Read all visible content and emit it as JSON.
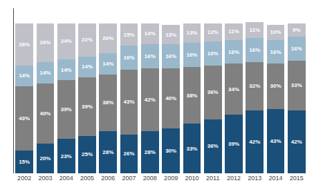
{
  "chart_data": {
    "type": "bar",
    "stacked": true,
    "data_labels": true,
    "grid": false,
    "tick_labels": "x",
    "categories": [
      "2002",
      "2003",
      "2004",
      "2005",
      "2006",
      "2007",
      "2008",
      "2009",
      "2010",
      "2011",
      "2012",
      "2013",
      "2014",
      "2015"
    ],
    "ylim": [
      0,
      110
    ],
    "series": [
      {
        "color": "#1a4f7a",
        "values": [
          15,
          20,
          23,
          25,
          28,
          26,
          28,
          30,
          33,
          36,
          39,
          42,
          43,
          42
        ],
        "value_labels": [
          "15%",
          "20%",
          "23%",
          "25%",
          "28%",
          "26%",
          "28%",
          "30%",
          "33%",
          "36%",
          "39%",
          "42%",
          "43%",
          "42%"
        ]
      },
      {
        "color": "#808080",
        "values": [
          43,
          40,
          39,
          39,
          38,
          43,
          42,
          40,
          38,
          36,
          34,
          32,
          30,
          33
        ],
        "value_labels": [
          "43%",
          "40%",
          "39%",
          "39%",
          "38%",
          "43%",
          "42%",
          "40%",
          "38%",
          "36%",
          "34%",
          "32%",
          "30%",
          "33%"
        ]
      },
      {
        "color": "#9ab8cc",
        "values": [
          14,
          14,
          14,
          14,
          14,
          16,
          16,
          16,
          16,
          16,
          16,
          16,
          16,
          16
        ],
        "value_labels": [
          "14%",
          "14%",
          "14%",
          "14%",
          "14%",
          "16%",
          "16%",
          "16%",
          "16%",
          "16%",
          "16%",
          "16%",
          "16%",
          "16%"
        ]
      },
      {
        "color": "#c0c0c8",
        "values": [
          28,
          26,
          24,
          22,
          20,
          15,
          14,
          13,
          13,
          12,
          11,
          11,
          10,
          9
        ],
        "value_labels": [
          "28%",
          "26%",
          "24%",
          "22%",
          "20%",
          "15%",
          "14%",
          "13%",
          "13%",
          "12%",
          "11%",
          "11%",
          "10%",
          "9%"
        ]
      }
    ]
  }
}
